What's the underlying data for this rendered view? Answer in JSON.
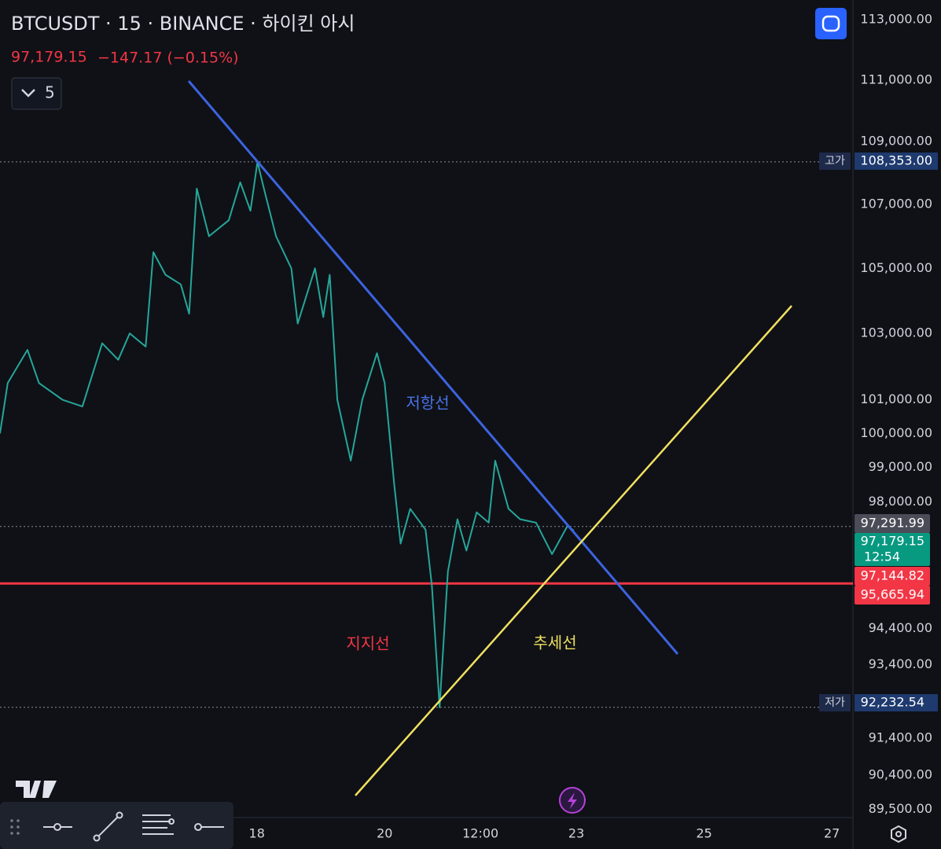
{
  "header": {
    "symbol": "BTCUSDT · 15 · BINANCE · 하이킨 아시",
    "price": "97,179.15",
    "change": "−147.17 (−0.15%)",
    "indicator_count": "5"
  },
  "chart_data": {
    "type": "line",
    "log_scale": true,
    "grid": true,
    "color": "#26a69a",
    "x": [
      13.98,
      14.1,
      14.41,
      14.59,
      14.96,
      15.27,
      15.58,
      15.83,
      16.01,
      16.26,
      16.38,
      16.57,
      16.81,
      16.94,
      17.06,
      17.25,
      17.56,
      17.74,
      17.9,
      18.01,
      18.11,
      18.3,
      18.54,
      18.64,
      18.91,
      19.04,
      19.14,
      19.26,
      19.47,
      19.65,
      19.88,
      20.0,
      20.15,
      20.25,
      20.4,
      20.64,
      20.74,
      20.86,
      20.99,
      21.14,
      21.28,
      21.44,
      21.63,
      21.73,
      21.94,
      22.12,
      22.37,
      22.62,
      22.86,
      22.96
    ],
    "values": [
      100000,
      101500,
      102500,
      101500,
      101000,
      100800,
      102700,
      102200,
      103000,
      102600,
      105500,
      104800,
      104500,
      103600,
      107500,
      106000,
      106500,
      107700,
      106800,
      108353,
      107500,
      106000,
      105000,
      103300,
      105000,
      103500,
      104800,
      101000,
      99200,
      101000,
      102400,
      101500,
      98500,
      96800,
      97800,
      97200,
      95600,
      92232.54,
      96000,
      97500,
      96600,
      97700,
      97400,
      99200,
      97800,
      97500,
      97400,
      96500,
      97300,
      97179.15
    ],
    "xlim": [
      13.98,
      27.33
    ],
    "xticks": [
      18,
      20,
      {
        "value": 21.5,
        "label": "12:00"
      },
      23,
      25,
      27
    ],
    "ylim": [
      89277,
      113658
    ],
    "yticks": [
      {
        "value": 113000,
        "label": "113,000.00"
      },
      {
        "value": 111000,
        "label": "111,000.00"
      },
      {
        "value": 109000,
        "label": "109,000.00"
      },
      {
        "value": 107000,
        "label": "107,000.00"
      },
      {
        "value": 105000,
        "label": "105,000.00"
      },
      {
        "value": 103000,
        "label": "103,000.00"
      },
      {
        "value": 101000,
        "label": "101,000.00"
      },
      {
        "value": 100000,
        "label": "100,000.00"
      },
      {
        "value": 99000,
        "label": "99,000.00"
      },
      {
        "value": 98000,
        "label": "98,000.00"
      },
      {
        "value": 94400,
        "label": "94,400.00"
      },
      {
        "value": 93400,
        "label": "93,400.00"
      },
      {
        "value": 91400,
        "label": "91,400.00"
      },
      {
        "value": 90400,
        "label": "90,400.00"
      },
      {
        "value": 89500,
        "label": "89,500.00"
      }
    ],
    "levels": [
      {
        "name": "고가",
        "value": 108353,
        "label": "108,353.00",
        "line": "dotted",
        "color": "#8a8f9c"
      },
      {
        "name": "저가",
        "value": 92232.54,
        "label": "92,232.54",
        "line": "dotted",
        "color": "#8a8f9c"
      },
      {
        "value": 97291.99,
        "label": "97,291.99",
        "line": "dotted",
        "color": "#8a8f9c"
      },
      {
        "value": 97179.15,
        "label": "97,179.15",
        "countdown": "12:54"
      },
      {
        "value": 97144.82,
        "label": "97,144.82"
      },
      {
        "value": 95665.94,
        "label": "95,665.94",
        "line": "solid",
        "color": "#f23645"
      }
    ],
    "annotations": {
      "resistance": "저항선",
      "support": "지지선",
      "trend": "추세선"
    }
  }
}
